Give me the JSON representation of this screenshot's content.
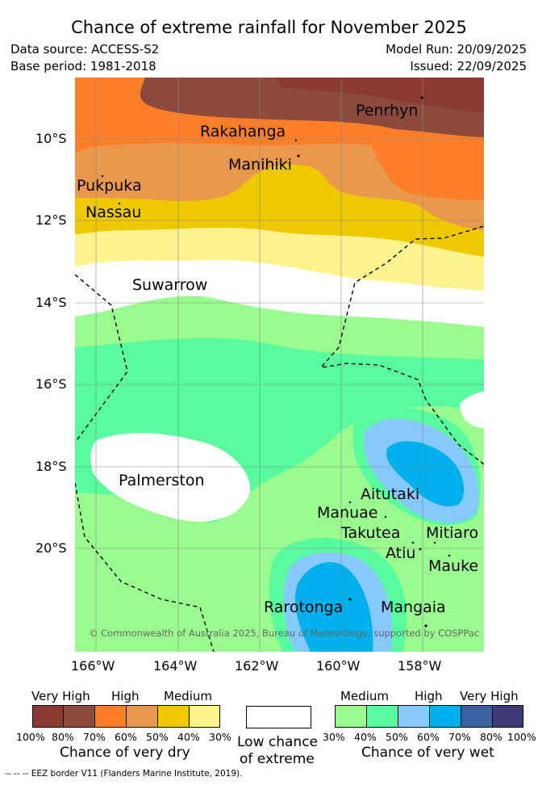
{
  "header": {
    "title": "Chance of extreme rainfall for November 2025",
    "data_source": "Data source: ACCESS-S2",
    "base_period": "Base period: 1981-2018",
    "model_run": "Model Run: 20/09/2025",
    "issued": "Issued: 22/09/2025"
  },
  "map": {
    "lat_ticks": [
      "10°S",
      "12°S",
      "14°S",
      "16°S",
      "18°S",
      "20°S"
    ],
    "lon_ticks": [
      "166°W",
      "164°W",
      "162°W",
      "160°W",
      "158°W"
    ],
    "islands": {
      "penrhyn": "Penrhyn",
      "rakahanga": "Rakahanga",
      "manihiki": "Manihiki",
      "pukapuka": "Pukpuka",
      "nassau": "Nassau",
      "suwarrow": "Suwarrow",
      "palmerston": "Palmerston",
      "aitutaki": "Aitutaki",
      "manuae": "Manuae",
      "takutea": "Takutea",
      "mitiaro": "Mitiaro",
      "atiu": "Atiu",
      "mauke": "Mauke",
      "rarotonga": "Rarotonga",
      "mangaia": "Mangaia"
    },
    "copyright": "© Commonwealth of Australia 2025, Bureau of Meteorology, supported by COSPPac",
    "colors": {
      "dry_very_high_100_80": "#8b3a32",
      "dry_very_high_80_70": "#8b4a3c",
      "dry_high_70_60": "#fd7e28",
      "dry_high_60_50": "#ea984c",
      "dry_medium_50_40": "#eec800",
      "dry_medium_40_30": "#fdf38f",
      "low_chance": "#ffffff",
      "wet_medium_30_40": "#9afc8e",
      "wet_medium_40_50": "#58fc9e",
      "wet_high_50_60": "#86c9fc",
      "wet_high_60_70": "#00b0ec",
      "wet_very_high_70_80": "#3a62a0",
      "wet_very_high_80_100": "#3e3a78"
    }
  },
  "legend": {
    "dry": {
      "categories": [
        "Very High",
        "High",
        "Medium"
      ],
      "values": [
        "100%",
        "80%",
        "70%",
        "60%",
        "50%",
        "40%",
        "30%"
      ],
      "title": "Chance of very dry"
    },
    "low": {
      "line1": "Low chance",
      "line2": "of extreme"
    },
    "wet": {
      "categories": [
        "Medium",
        "High",
        "Very High"
      ],
      "values": [
        "30%",
        "40%",
        "50%",
        "60%",
        "70%",
        "80%",
        "100%"
      ],
      "title": "Chance of very wet"
    }
  },
  "footnote": "-- -- -- EEZ border V11 (Flanders Marine Institute, 2019)."
}
